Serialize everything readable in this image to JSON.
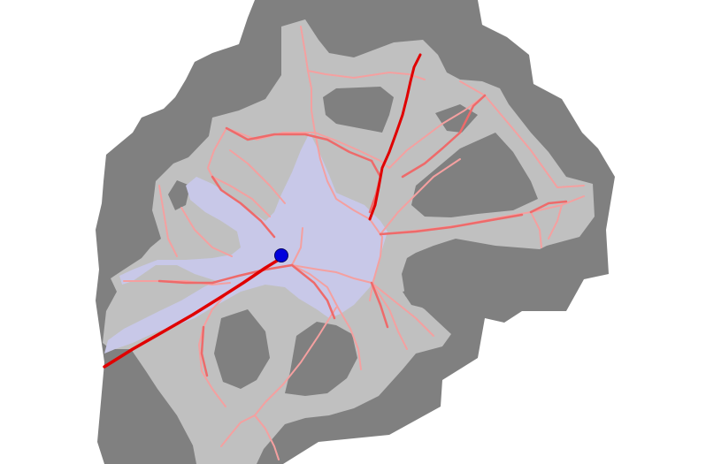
{
  "map": {
    "colors": {
      "background": "#ffffff",
      "outer_zone": "#808080",
      "inner_zone": "#c0c0c0",
      "explored_area": "#c8c8e8",
      "path_light": "#f4a0a0",
      "path_medium": "#ee6a6a",
      "path_strong": "#e00000",
      "marker": "#0000dd"
    },
    "marker_icon": "blue-dot-position-marker"
  }
}
